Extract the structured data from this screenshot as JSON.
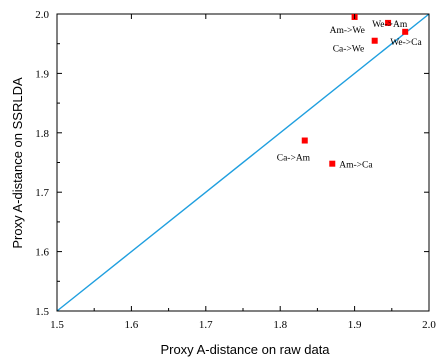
{
  "chart_data": {
    "type": "scatter",
    "xlabel": "Proxy A-distance on raw data",
    "ylabel": "Proxy A-distance on SSRLDA",
    "xlim": [
      1.5,
      2.0
    ],
    "ylim": [
      1.5,
      2.0
    ],
    "xticks": [
      "1.5",
      "1.6",
      "1.7",
      "1.8",
      "1.9",
      "2.0"
    ],
    "yticks": [
      "1.5",
      "1.6",
      "1.7",
      "1.8",
      "1.9",
      "2.0"
    ],
    "grid": false,
    "points": [
      {
        "label": "Am->We",
        "x": 1.9,
        "y": 1.995
      },
      {
        "label": "We->Am",
        "x": 1.945,
        "y": 1.985
      },
      {
        "label": "Ca->We",
        "x": 1.927,
        "y": 1.955
      },
      {
        "label": "We->Ca",
        "x": 1.968,
        "y": 1.97
      },
      {
        "label": "Ca->Am",
        "x": 1.833,
        "y": 1.787
      },
      {
        "label": "Am->Ca",
        "x": 1.87,
        "y": 1.748
      }
    ],
    "reference_line": {
      "x": [
        1.5,
        2.0
      ],
      "y": [
        1.5,
        2.0
      ]
    },
    "marker_color": "#ff0000",
    "line_color": "#1f9fdf",
    "axis_color": "#000000"
  }
}
